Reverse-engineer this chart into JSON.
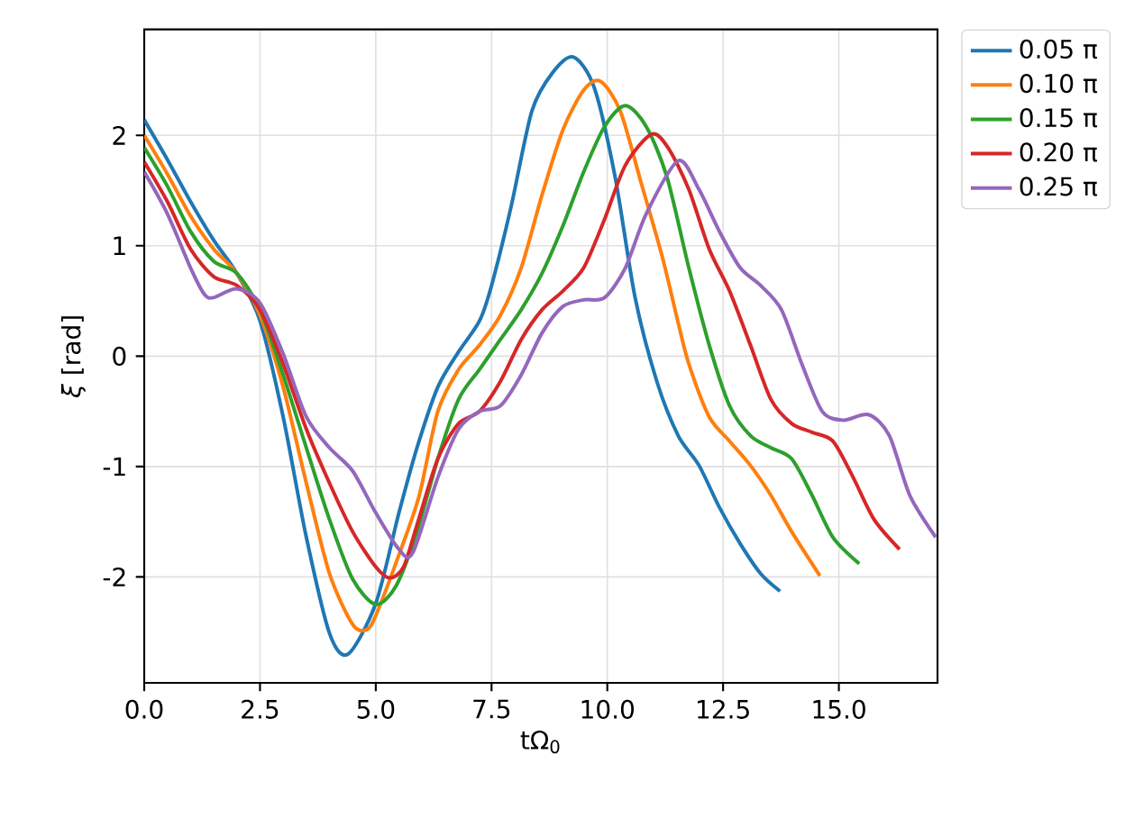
{
  "chart_data": {
    "type": "line",
    "xlabel": "tΩ$_{0}$",
    "ylabel": "*ξ* [rad]",
    "xlim": [
      0,
      17.13
    ],
    "ylim": [
      -2.96,
      2.96
    ],
    "xticks": [
      {
        "value": 0,
        "label": "0.0"
      },
      2.5,
      {
        "value": 5,
        "label": "5.0"
      },
      7.5,
      {
        "value": 10,
        "label": "10.0"
      },
      12.5,
      {
        "value": 15,
        "label": "15.0"
      }
    ],
    "yticks": [
      -2,
      -1,
      0,
      1,
      2
    ],
    "grid": true,
    "legend": "right",
    "series": [
      {
        "name": "0.05 π",
        "color": "#1f77b4",
        "x": [
          0,
          0.5,
          1,
          1.5,
          2,
          2.5,
          3,
          3.5,
          4,
          4.4,
          5,
          5.5,
          5.89,
          6.34,
          6.79,
          7.24,
          7.5,
          7.92,
          8.37,
          8.82,
          9.27,
          9.72,
          10.17,
          10.6,
          11.07,
          11.53,
          11.98,
          12.42,
          12.87,
          13.31,
          13.73
        ],
        "values": [
          2.14,
          1.78,
          1.4,
          1.05,
          0.75,
          0.32,
          -0.55,
          -1.64,
          -2.51,
          -2.7,
          -2.24,
          -1.42,
          -0.83,
          -0.28,
          0.04,
          0.32,
          0.64,
          1.35,
          2.22,
          2.57,
          2.71,
          2.43,
          1.62,
          0.53,
          -0.23,
          -0.72,
          -0.99,
          -1.37,
          -1.7,
          -1.97,
          -2.13
        ]
      },
      {
        "name": "0.10 π",
        "color": "#ff7f0e",
        "x": [
          0,
          0.5,
          1,
          1.5,
          2,
          2.5,
          3,
          3.5,
          4,
          4.5,
          4.8,
          5,
          5.5,
          5.94,
          6.34,
          6.79,
          7.24,
          7.69,
          8.14,
          8.59,
          9.04,
          9.49,
          9.85,
          10.28,
          10.73,
          11.18,
          11.52,
          11.76,
          12.2,
          12.64,
          13.09,
          13.53,
          13.98,
          14.59
        ],
        "values": [
          2.0,
          1.65,
          1.27,
          0.97,
          0.75,
          0.37,
          -0.28,
          -1.15,
          -1.97,
          -2.43,
          -2.48,
          -2.35,
          -1.8,
          -1.26,
          -0.5,
          -0.12,
          0.1,
          0.37,
          0.8,
          1.46,
          2.05,
          2.41,
          2.49,
          2.22,
          1.57,
          0.91,
          0.32,
          -0.07,
          -0.55,
          -0.77,
          -0.99,
          -1.26,
          -1.59,
          -1.99
        ]
      },
      {
        "name": "0.15 π",
        "color": "#2ca02c",
        "x": [
          0,
          0.5,
          1,
          1.5,
          2,
          2.5,
          3,
          3.5,
          4,
          4.5,
          5,
          5.44,
          5.89,
          6.34,
          6.79,
          7.24,
          7.69,
          8.14,
          8.59,
          9.04,
          9.49,
          9.94,
          10.39,
          10.84,
          11.29,
          11.76,
          12.2,
          12.64,
          13.09,
          13.53,
          13.98,
          14.42,
          14.87,
          15.44
        ],
        "values": [
          1.89,
          1.54,
          1.13,
          0.86,
          0.75,
          0.42,
          -0.17,
          -0.83,
          -1.48,
          -2.02,
          -2.25,
          -2.08,
          -1.59,
          -0.93,
          -0.39,
          -0.12,
          0.15,
          0.42,
          0.75,
          1.18,
          1.67,
          2.08,
          2.27,
          2.08,
          1.62,
          0.8,
          0.1,
          -0.45,
          -0.72,
          -0.83,
          -0.93,
          -1.26,
          -1.64,
          -1.88
        ]
      },
      {
        "name": "0.20 π",
        "color": "#d62728",
        "x": [
          0,
          0.5,
          1,
          1.5,
          2,
          2.5,
          3,
          3.5,
          4,
          4.5,
          5,
          5.3,
          5.6,
          5.89,
          6.34,
          6.79,
          7.24,
          7.69,
          8.14,
          8.59,
          9.04,
          9.49,
          9.94,
          10.39,
          10.95,
          11.31,
          11.76,
          12.2,
          12.64,
          13.09,
          13.53,
          13.98,
          14.42,
          14.87,
          15.31,
          15.76,
          16.31
        ],
        "values": [
          1.76,
          1.4,
          0.97,
          0.72,
          0.64,
          0.42,
          -0.07,
          -0.66,
          -1.15,
          -1.59,
          -1.91,
          -2.01,
          -1.91,
          -1.53,
          -0.93,
          -0.61,
          -0.5,
          -0.23,
          0.15,
          0.42,
          0.59,
          0.8,
          1.24,
          1.73,
          2.01,
          1.89,
          1.51,
          0.97,
          0.59,
          0.1,
          -0.39,
          -0.61,
          -0.69,
          -0.77,
          -1.1,
          -1.48,
          -1.75
        ]
      },
      {
        "name": "0.25 π",
        "color": "#9467bd",
        "x": [
          0,
          0.5,
          1,
          1.3,
          1.5,
          2,
          2.5,
          3,
          3.5,
          4,
          4.5,
          5,
          5.5,
          5.8,
          6.34,
          6.79,
          7.24,
          7.69,
          8.14,
          8.59,
          9.04,
          9.49,
          9.94,
          10.39,
          10.84,
          11.53,
          11.98,
          12.42,
          12.87,
          13.31,
          13.76,
          14.2,
          14.64,
          15.09,
          15.64,
          16.09,
          16.53,
          17.09
        ],
        "values": [
          1.67,
          1.29,
          0.8,
          0.56,
          0.53,
          0.61,
          0.48,
          0.02,
          -0.55,
          -0.83,
          -1.04,
          -1.42,
          -1.75,
          -1.78,
          -1.1,
          -0.66,
          -0.5,
          -0.45,
          -0.17,
          0.21,
          0.45,
          0.51,
          0.53,
          0.8,
          1.29,
          1.77,
          1.51,
          1.13,
          0.8,
          0.64,
          0.42,
          -0.07,
          -0.5,
          -0.58,
          -0.53,
          -0.72,
          -1.26,
          -1.64
        ]
      }
    ]
  }
}
